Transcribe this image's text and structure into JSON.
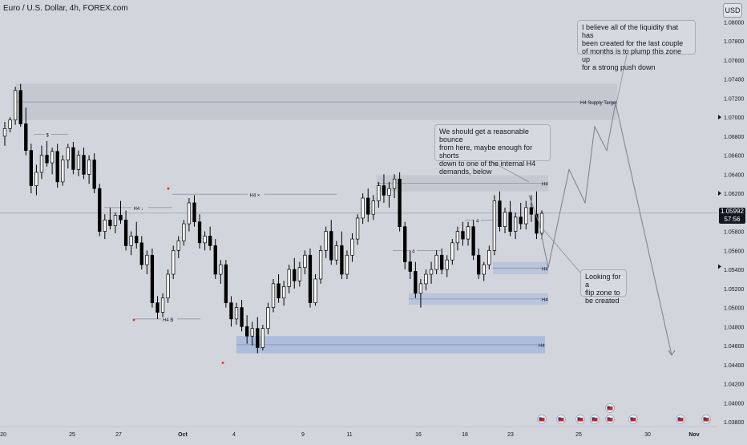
{
  "header": {
    "symbol_title": "Euro / U.S. Dollar, 4h, FOREX.com",
    "currency_button": "USD"
  },
  "price_badge": {
    "price": "1.05992",
    "countdown": "57:56"
  },
  "colors": {
    "background": "#d2d5dc",
    "bull_candle": "#ffffff",
    "bear_candle": "#000000",
    "supply_zone": "#c3c6ce",
    "demand_zone": "#b6c3dc",
    "demand_zone_blue": "#a7badd",
    "annotation_line": "#7b7f89",
    "red_marker": "#e53935"
  },
  "notes": [
    "I believe all of the liquidity that has\nbeen created for the last couple\nof months is to plump this zone up\nfor a strong push down",
    "We should get a reasonable bounce\nfrom here, maybe enough for shorts\ndown to one of the internal H4\ndemands, below",
    "Looking for a\nflip zone to\nbe created"
  ],
  "chart_data": {
    "type": "candlestick",
    "symbol": "EURUSD",
    "timeframe": "4h",
    "x_tick_labels": [
      "20",
      "25",
      "27",
      "Oct",
      "4",
      "9",
      "11",
      "16",
      "18",
      "23",
      "25",
      "30",
      "Nov"
    ],
    "y_tick_labels": [
      "1.08000",
      "1.07800",
      "1.07600",
      "1.07400",
      "1.07200",
      "1.07000",
      "1.06800",
      "1.06600",
      "1.06400",
      "1.06200",
      "1.06000",
      "1.05800",
      "1.05600",
      "1.05400",
      "1.05200",
      "1.05000",
      "1.04800",
      "1.04600",
      "1.04400",
      "1.04200",
      "1.04000",
      "1.03800"
    ],
    "ylim": [
      1.0375,
      1.0818
    ],
    "current_price": 1.05992,
    "candles_ohlc": [
      [
        1.068,
        1.0695,
        1.067,
        1.0688
      ],
      [
        1.0688,
        1.07,
        1.0684,
        1.0697
      ],
      [
        1.0697,
        1.0732,
        1.0692,
        1.0728
      ],
      [
        1.0728,
        1.0735,
        1.069,
        1.0693
      ],
      [
        1.0693,
        1.071,
        1.066,
        1.0665
      ],
      [
        1.0665,
        1.0672,
        1.062,
        1.0628
      ],
      [
        1.0628,
        1.065,
        1.0618,
        1.0642
      ],
      [
        1.0642,
        1.067,
        1.0635,
        1.066
      ],
      [
        1.066,
        1.0675,
        1.0648,
        1.0652
      ],
      [
        1.0652,
        1.0668,
        1.064,
        1.0664
      ],
      [
        1.0664,
        1.0672,
        1.0626,
        1.0632
      ],
      [
        1.0632,
        1.066,
        1.0628,
        1.0655
      ],
      [
        1.0655,
        1.0672,
        1.0646,
        1.0668
      ],
      [
        1.0668,
        1.0674,
        1.064,
        1.0645
      ],
      [
        1.0645,
        1.0665,
        1.0638,
        1.066
      ],
      [
        1.066,
        1.0668,
        1.0635,
        1.064
      ],
      [
        1.064,
        1.066,
        1.063,
        1.0655
      ],
      [
        1.0655,
        1.0662,
        1.062,
        1.0625
      ],
      [
        1.0625,
        1.063,
        1.0575,
        1.058
      ],
      [
        1.058,
        1.0598,
        1.0572,
        1.0592
      ],
      [
        1.0592,
        1.0605,
        1.0582,
        1.0586
      ],
      [
        1.0586,
        1.06,
        1.0578,
        1.0597
      ],
      [
        1.0597,
        1.0612,
        1.0588,
        1.0592
      ],
      [
        1.0592,
        1.0602,
        1.056,
        1.0565
      ],
      [
        1.0565,
        1.058,
        1.0555,
        1.0575
      ],
      [
        1.0575,
        1.059,
        1.0562,
        1.0568
      ],
      [
        1.0568,
        1.0575,
        1.054,
        1.0545
      ],
      [
        1.0545,
        1.056,
        1.0535,
        1.0555
      ],
      [
        1.0555,
        1.0562,
        1.05,
        1.0505
      ],
      [
        1.0505,
        1.0512,
        1.0488,
        1.0495
      ],
      [
        1.0495,
        1.0515,
        1.049,
        1.051
      ],
      [
        1.051,
        1.054,
        1.0505,
        1.0535
      ],
      [
        1.0535,
        1.0565,
        1.053,
        1.056
      ],
      [
        1.056,
        1.0575,
        1.0552,
        1.057
      ],
      [
        1.057,
        1.0592,
        1.0565,
        1.0588
      ],
      [
        1.0588,
        1.0615,
        1.058,
        1.061
      ],
      [
        1.061,
        1.0618,
        1.0585,
        1.059
      ],
      [
        1.059,
        1.0598,
        1.0562,
        1.0568
      ],
      [
        1.0568,
        1.058,
        1.056,
        1.0575
      ],
      [
        1.0575,
        1.0585,
        1.056,
        1.0565
      ],
      [
        1.0565,
        1.0572,
        1.053,
        1.0535
      ],
      [
        1.0535,
        1.055,
        1.0525,
        1.0545
      ],
      [
        1.0545,
        1.055,
        1.05,
        1.0505
      ],
      [
        1.0505,
        1.0512,
        1.048,
        1.0488
      ],
      [
        1.0488,
        1.0505,
        1.0482,
        1.05
      ],
      [
        1.05,
        1.0508,
        1.0475,
        1.048
      ],
      [
        1.048,
        1.0492,
        1.0462,
        1.047
      ],
      [
        1.047,
        1.0485,
        1.046,
        1.0478
      ],
      [
        1.0478,
        1.049,
        1.0452,
        1.0458
      ],
      [
        1.0458,
        1.0482,
        1.0455,
        1.0478
      ],
      [
        1.0478,
        1.0505,
        1.0472,
        1.05
      ],
      [
        1.05,
        1.053,
        1.0495,
        1.0525
      ],
      [
        1.0525,
        1.0535,
        1.0505,
        1.051
      ],
      [
        1.051,
        1.0528,
        1.0502,
        1.0522
      ],
      [
        1.0522,
        1.0545,
        1.0515,
        1.054
      ],
      [
        1.054,
        1.0552,
        1.052,
        1.0528
      ],
      [
        1.0528,
        1.0548,
        1.0522,
        1.0542
      ],
      [
        1.0542,
        1.056,
        1.0535,
        1.0555
      ],
      [
        1.0555,
        1.0562,
        1.05,
        1.0505
      ],
      [
        1.0505,
        1.0535,
        1.0502,
        1.053
      ],
      [
        1.053,
        1.0565,
        1.0525,
        1.056
      ],
      [
        1.056,
        1.0585,
        1.0552,
        1.058
      ],
      [
        1.058,
        1.0592,
        1.0545,
        1.055
      ],
      [
        1.055,
        1.057,
        1.0545,
        1.0565
      ],
      [
        1.0565,
        1.058,
        1.053,
        1.0535
      ],
      [
        1.0535,
        1.056,
        1.053,
        1.0555
      ],
      [
        1.0555,
        1.0578,
        1.0548,
        1.0572
      ],
      [
        1.0572,
        1.0598,
        1.0566,
        1.0594
      ],
      [
        1.0594,
        1.062,
        1.0588,
        1.0615
      ],
      [
        1.0615,
        1.0625,
        1.059,
        1.0598
      ],
      [
        1.0598,
        1.0618,
        1.0592,
        1.0612
      ],
      [
        1.0612,
        1.0632,
        1.0605,
        1.0628
      ],
      [
        1.0628,
        1.064,
        1.061,
        1.0618
      ],
      [
        1.0618,
        1.0632,
        1.0605,
        1.0625
      ],
      [
        1.0625,
        1.064,
        1.0615,
        1.0635
      ],
      [
        1.0635,
        1.0642,
        1.058,
        1.0585
      ],
      [
        1.0585,
        1.059,
        1.054,
        1.0548
      ],
      [
        1.0548,
        1.056,
        1.053,
        1.0538
      ],
      [
        1.0538,
        1.0548,
        1.051,
        1.0515
      ],
      [
        1.0515,
        1.053,
        1.05,
        1.0525
      ],
      [
        1.0525,
        1.054,
        1.0518,
        1.0535
      ],
      [
        1.0535,
        1.0548,
        1.0525,
        1.054
      ],
      [
        1.054,
        1.056,
        1.0535,
        1.0555
      ],
      [
        1.0555,
        1.0562,
        1.0535,
        1.054
      ],
      [
        1.054,
        1.0555,
        1.0532,
        1.055
      ],
      [
        1.055,
        1.0572,
        1.0545,
        1.0568
      ],
      [
        1.0568,
        1.0585,
        1.056,
        1.058
      ],
      [
        1.058,
        1.059,
        1.0565,
        1.0572
      ],
      [
        1.0572,
        1.059,
        1.0565,
        1.0585
      ],
      [
        1.0585,
        1.0592,
        1.055,
        1.0555
      ],
      [
        1.0555,
        1.0562,
        1.053,
        1.0535
      ],
      [
        1.0535,
        1.0548,
        1.0528,
        1.0545
      ],
      [
        1.0545,
        1.0565,
        1.054,
        1.056
      ],
      [
        1.056,
        1.0618,
        1.0555,
        1.0612
      ],
      [
        1.0612,
        1.0622,
        1.058,
        1.0585
      ],
      [
        1.0585,
        1.0605,
        1.0578,
        1.06
      ],
      [
        1.06,
        1.0612,
        1.0575,
        1.058
      ],
      [
        1.058,
        1.06,
        1.0572,
        1.0595
      ],
      [
        1.0595,
        1.061,
        1.0582,
        1.0588
      ],
      [
        1.0588,
        1.0612,
        1.0582,
        1.0605
      ],
      [
        1.0605,
        1.0618,
        1.059,
        1.0598
      ],
      [
        1.0598,
        1.0622,
        1.0572,
        1.0578
      ],
      [
        1.0578,
        1.0602,
        1.0572,
        1.0599
      ]
    ],
    "zones": [
      {
        "label": "H4 Supply Target",
        "type": "supply"
      },
      {
        "label": "H4",
        "type": "supply"
      },
      {
        "label": "H4",
        "type": "demand"
      },
      {
        "label": "H4",
        "type": "demand"
      },
      {
        "label": "H4",
        "type": "demand"
      }
    ],
    "level_labels": [
      "H4 ↓",
      "H4 ×",
      "H4 B",
      "4",
      "4",
      "$"
    ],
    "projection_path": [
      1.0542,
      1.0645,
      1.061,
      1.069,
      1.0665,
      1.0715,
      1.045
    ],
    "event_markers": [
      "us-flag-icon",
      "us-flag-icon",
      "us-flag-icon",
      "us-flag-icon",
      "us-flag-icon",
      "us-flag-icon",
      "us-flag-icon",
      "us-flag-icon",
      "us-flag-icon"
    ]
  }
}
